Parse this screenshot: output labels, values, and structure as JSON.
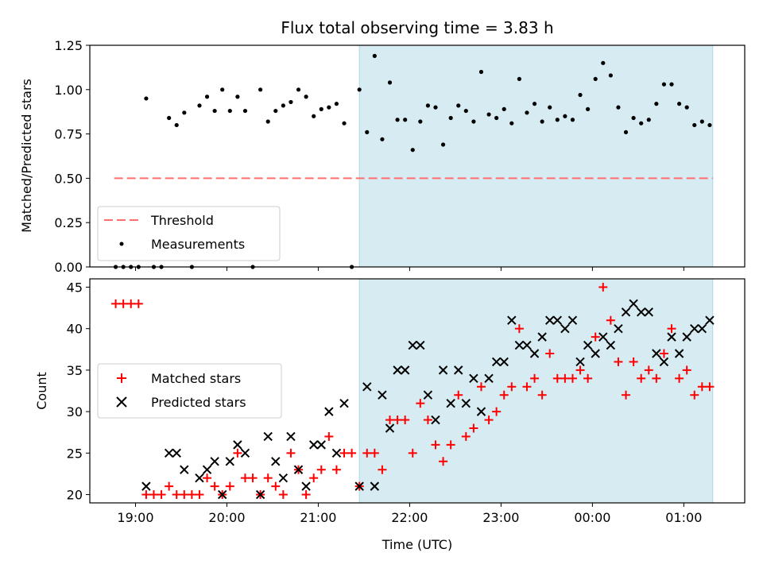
{
  "chart_data": [
    {
      "type": "scatter",
      "title": "Flux total observing time = 3.83 h",
      "xlabel": "",
      "ylabel": "Matched/Predicted stars",
      "ylim": [
        0,
        1.25
      ],
      "yticks": [
        "0.00",
        "0.25",
        "0.50",
        "0.75",
        "1.00",
        "1.25"
      ],
      "xlim": [
        "18:30",
        "01:40"
      ],
      "highlight_span": [
        "21:27",
        "01:19"
      ],
      "highlight_color": "#add8e6",
      "threshold": {
        "name": "Threshold",
        "value": 0.5,
        "x_range": [
          "18:46",
          "01:19"
        ],
        "color": "#ff6f6f"
      },
      "series": [
        {
          "name": "Measurements",
          "color": "#000000",
          "points": [
            [
              "18:47",
              0.0
            ],
            [
              "18:52",
              0.0
            ],
            [
              "18:57",
              0.0
            ],
            [
              "19:02",
              0.0
            ],
            [
              "19:07",
              0.95
            ],
            [
              "19:12",
              0.0
            ],
            [
              "19:17",
              0.0
            ],
            [
              "19:22",
              0.84
            ],
            [
              "19:27",
              0.8
            ],
            [
              "19:32",
              0.87
            ],
            [
              "19:37",
              0.0
            ],
            [
              "19:42",
              0.91
            ],
            [
              "19:47",
              0.96
            ],
            [
              "19:52",
              0.88
            ],
            [
              "19:57",
              1.0
            ],
            [
              "20:02",
              0.88
            ],
            [
              "20:07",
              0.96
            ],
            [
              "20:12",
              0.88
            ],
            [
              "20:17",
              0.0
            ],
            [
              "20:22",
              1.0
            ],
            [
              "20:27",
              0.82
            ],
            [
              "20:32",
              0.88
            ],
            [
              "20:37",
              0.91
            ],
            [
              "20:42",
              0.93
            ],
            [
              "20:47",
              1.0
            ],
            [
              "20:52",
              0.96
            ],
            [
              "20:57",
              0.85
            ],
            [
              "21:02",
              0.89
            ],
            [
              "21:07",
              0.9
            ],
            [
              "21:12",
              0.92
            ],
            [
              "21:17",
              0.81
            ],
            [
              "21:22",
              0.0
            ],
            [
              "21:27",
              1.0
            ],
            [
              "21:32",
              0.76
            ],
            [
              "21:37",
              1.19
            ],
            [
              "21:42",
              0.72
            ],
            [
              "21:47",
              1.04
            ],
            [
              "21:52",
              0.83
            ],
            [
              "21:57",
              0.83
            ],
            [
              "22:02",
              0.66
            ],
            [
              "22:07",
              0.82
            ],
            [
              "22:12",
              0.91
            ],
            [
              "22:17",
              0.9
            ],
            [
              "22:22",
              0.69
            ],
            [
              "22:27",
              0.84
            ],
            [
              "22:32",
              0.91
            ],
            [
              "22:37",
              0.88
            ],
            [
              "22:42",
              0.82
            ],
            [
              "22:47",
              1.1
            ],
            [
              "22:52",
              0.86
            ],
            [
              "22:57",
              0.84
            ],
            [
              "23:02",
              0.89
            ],
            [
              "23:07",
              0.81
            ],
            [
              "23:12",
              1.06
            ],
            [
              "23:17",
              0.87
            ],
            [
              "23:22",
              0.92
            ],
            [
              "23:27",
              0.82
            ],
            [
              "23:32",
              0.9
            ],
            [
              "23:37",
              0.83
            ],
            [
              "23:42",
              0.85
            ],
            [
              "23:47",
              0.83
            ],
            [
              "23:52",
              0.97
            ],
            [
              "23:57",
              0.89
            ],
            [
              "00:02",
              1.06
            ],
            [
              "00:07",
              1.15
            ],
            [
              "00:12",
              1.08
            ],
            [
              "00:17",
              0.9
            ],
            [
              "00:22",
              0.76
            ],
            [
              "00:27",
              0.84
            ],
            [
              "00:32",
              0.81
            ],
            [
              "00:37",
              0.83
            ],
            [
              "00:42",
              0.92
            ],
            [
              "00:47",
              1.03
            ],
            [
              "00:52",
              1.03
            ],
            [
              "00:57",
              0.92
            ],
            [
              "01:02",
              0.9
            ],
            [
              "01:07",
              0.8
            ],
            [
              "01:12",
              0.82
            ],
            [
              "01:17",
              0.8
            ]
          ]
        }
      ],
      "legend": {
        "position": "lower left",
        "entries": [
          "Threshold",
          "Measurements"
        ]
      }
    },
    {
      "type": "scatter",
      "title": "",
      "xlabel": "Time (UTC)",
      "ylabel": "Count",
      "ylim": [
        19,
        46
      ],
      "yticks": [
        "20",
        "25",
        "30",
        "35",
        "40",
        "45"
      ],
      "xlim": [
        "18:30",
        "01:40"
      ],
      "xticks": [
        "19:00",
        "20:00",
        "21:00",
        "22:00",
        "23:00",
        "00:00",
        "01:00"
      ],
      "highlight_span": [
        "21:27",
        "01:19"
      ],
      "highlight_color": "#add8e6",
      "series": [
        {
          "name": "Matched stars",
          "marker": "+",
          "color": "#ff0000",
          "points": [
            [
              "18:47",
              43
            ],
            [
              "18:52",
              43
            ],
            [
              "18:57",
              43
            ],
            [
              "19:02",
              43
            ],
            [
              "19:07",
              20
            ],
            [
              "19:12",
              20
            ],
            [
              "19:17",
              20
            ],
            [
              "19:22",
              21
            ],
            [
              "19:27",
              20
            ],
            [
              "19:32",
              20
            ],
            [
              "19:37",
              20
            ],
            [
              "19:42",
              20
            ],
            [
              "19:47",
              22
            ],
            [
              "19:52",
              21
            ],
            [
              "19:57",
              20
            ],
            [
              "20:02",
              21
            ],
            [
              "20:07",
              25
            ],
            [
              "20:12",
              22
            ],
            [
              "20:17",
              22
            ],
            [
              "20:22",
              20
            ],
            [
              "20:27",
              22
            ],
            [
              "20:32",
              21
            ],
            [
              "20:37",
              20
            ],
            [
              "20:42",
              25
            ],
            [
              "20:47",
              23
            ],
            [
              "20:52",
              20
            ],
            [
              "20:57",
              22
            ],
            [
              "21:02",
              23
            ],
            [
              "21:07",
              27
            ],
            [
              "21:12",
              23
            ],
            [
              "21:17",
              25
            ],
            [
              "21:22",
              25
            ],
            [
              "21:27",
              21
            ],
            [
              "21:32",
              25
            ],
            [
              "21:37",
              25
            ],
            [
              "21:42",
              23
            ],
            [
              "21:47",
              29
            ],
            [
              "21:52",
              29
            ],
            [
              "21:57",
              29
            ],
            [
              "22:02",
              25
            ],
            [
              "22:07",
              31
            ],
            [
              "22:12",
              29
            ],
            [
              "22:17",
              26
            ],
            [
              "22:22",
              24
            ],
            [
              "22:27",
              26
            ],
            [
              "22:32",
              32
            ],
            [
              "22:37",
              27
            ],
            [
              "22:42",
              28
            ],
            [
              "22:47",
              33
            ],
            [
              "22:52",
              29
            ],
            [
              "22:57",
              30
            ],
            [
              "23:02",
              32
            ],
            [
              "23:07",
              33
            ],
            [
              "23:12",
              40
            ],
            [
              "23:17",
              33
            ],
            [
              "23:22",
              34
            ],
            [
              "23:27",
              32
            ],
            [
              "23:32",
              37
            ],
            [
              "23:37",
              34
            ],
            [
              "23:42",
              34
            ],
            [
              "23:47",
              34
            ],
            [
              "23:52",
              35
            ],
            [
              "23:57",
              34
            ],
            [
              "00:02",
              39
            ],
            [
              "00:07",
              45
            ],
            [
              "00:12",
              41
            ],
            [
              "00:17",
              36
            ],
            [
              "00:22",
              32
            ],
            [
              "00:27",
              36
            ],
            [
              "00:32",
              34
            ],
            [
              "00:37",
              35
            ],
            [
              "00:42",
              34
            ],
            [
              "00:47",
              37
            ],
            [
              "00:52",
              40
            ],
            [
              "00:57",
              34
            ],
            [
              "01:02",
              35
            ],
            [
              "01:07",
              32
            ],
            [
              "01:12",
              33
            ],
            [
              "01:17",
              33
            ]
          ]
        },
        {
          "name": "Predicted stars",
          "marker": "x",
          "color": "#000000",
          "points": [
            [
              "19:07",
              21
            ],
            [
              "19:22",
              25
            ],
            [
              "19:27",
              25
            ],
            [
              "19:32",
              23
            ],
            [
              "19:42",
              22
            ],
            [
              "19:47",
              23
            ],
            [
              "19:52",
              24
            ],
            [
              "19:57",
              20
            ],
            [
              "20:02",
              24
            ],
            [
              "20:07",
              26
            ],
            [
              "20:12",
              25
            ],
            [
              "20:22",
              20
            ],
            [
              "20:27",
              27
            ],
            [
              "20:32",
              24
            ],
            [
              "20:37",
              22
            ],
            [
              "20:42",
              27
            ],
            [
              "20:47",
              23
            ],
            [
              "20:52",
              21
            ],
            [
              "20:57",
              26
            ],
            [
              "21:02",
              26
            ],
            [
              "21:07",
              30
            ],
            [
              "21:12",
              25
            ],
            [
              "21:17",
              31
            ],
            [
              "21:27",
              21
            ],
            [
              "21:32",
              33
            ],
            [
              "21:37",
              21
            ],
            [
              "21:42",
              32
            ],
            [
              "21:47",
              28
            ],
            [
              "21:52",
              35
            ],
            [
              "21:57",
              35
            ],
            [
              "22:02",
              38
            ],
            [
              "22:07",
              38
            ],
            [
              "22:12",
              32
            ],
            [
              "22:17",
              29
            ],
            [
              "22:22",
              35
            ],
            [
              "22:27",
              31
            ],
            [
              "22:32",
              35
            ],
            [
              "22:37",
              31
            ],
            [
              "22:42",
              34
            ],
            [
              "22:47",
              30
            ],
            [
              "22:52",
              34
            ],
            [
              "22:57",
              36
            ],
            [
              "23:02",
              36
            ],
            [
              "23:07",
              41
            ],
            [
              "23:12",
              38
            ],
            [
              "23:17",
              38
            ],
            [
              "23:22",
              37
            ],
            [
              "23:27",
              39
            ],
            [
              "23:32",
              41
            ],
            [
              "23:37",
              41
            ],
            [
              "23:42",
              40
            ],
            [
              "23:47",
              41
            ],
            [
              "23:52",
              36
            ],
            [
              "23:57",
              38
            ],
            [
              "00:02",
              37
            ],
            [
              "00:07",
              39
            ],
            [
              "00:12",
              38
            ],
            [
              "00:17",
              40
            ],
            [
              "00:22",
              42
            ],
            [
              "00:27",
              43
            ],
            [
              "00:32",
              42
            ],
            [
              "00:37",
              42
            ],
            [
              "00:42",
              37
            ],
            [
              "00:47",
              36
            ],
            [
              "00:52",
              39
            ],
            [
              "00:57",
              37
            ],
            [
              "01:02",
              39
            ],
            [
              "01:07",
              40
            ],
            [
              "01:12",
              40
            ],
            [
              "01:17",
              41
            ]
          ]
        }
      ],
      "legend": {
        "position": "center left",
        "entries": [
          "Matched stars",
          "Predicted stars"
        ]
      }
    }
  ]
}
